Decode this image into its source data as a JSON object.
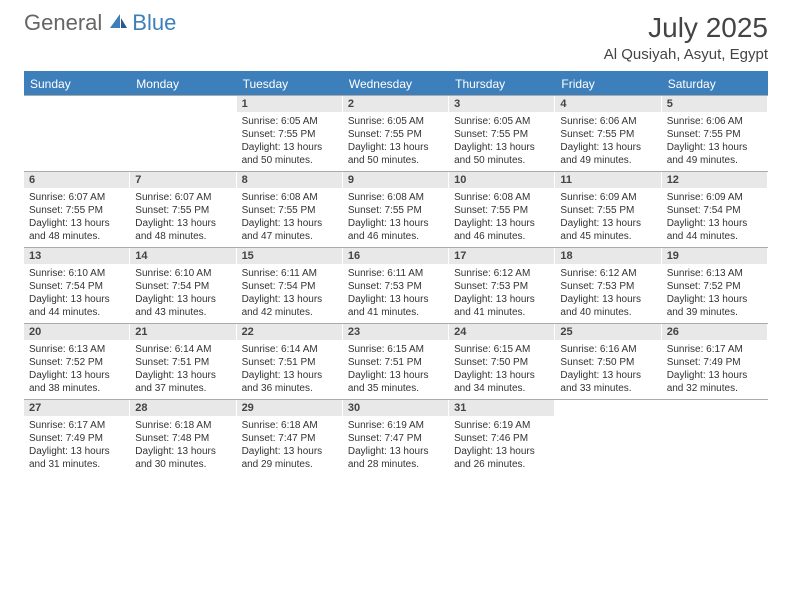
{
  "logo": {
    "text1": "General",
    "text2": "Blue"
  },
  "title": "July 2025",
  "location": "Al Qusiyah, Asyut, Egypt",
  "colors": {
    "header_bar": "#3d7fba",
    "day_num_bg": "#e8e8e8",
    "text": "#333333",
    "title_text": "#444444",
    "background": "#ffffff"
  },
  "day_headers": [
    "Sunday",
    "Monday",
    "Tuesday",
    "Wednesday",
    "Thursday",
    "Friday",
    "Saturday"
  ],
  "weeks": [
    [
      {
        "n": "",
        "sr": "",
        "ss": "",
        "d1": "",
        "d2": "",
        "empty": true
      },
      {
        "n": "",
        "sr": "",
        "ss": "",
        "d1": "",
        "d2": "",
        "empty": true
      },
      {
        "n": "1",
        "sr": "Sunrise: 6:05 AM",
        "ss": "Sunset: 7:55 PM",
        "d1": "Daylight: 13 hours",
        "d2": "and 50 minutes."
      },
      {
        "n": "2",
        "sr": "Sunrise: 6:05 AM",
        "ss": "Sunset: 7:55 PM",
        "d1": "Daylight: 13 hours",
        "d2": "and 50 minutes."
      },
      {
        "n": "3",
        "sr": "Sunrise: 6:05 AM",
        "ss": "Sunset: 7:55 PM",
        "d1": "Daylight: 13 hours",
        "d2": "and 50 minutes."
      },
      {
        "n": "4",
        "sr": "Sunrise: 6:06 AM",
        "ss": "Sunset: 7:55 PM",
        "d1": "Daylight: 13 hours",
        "d2": "and 49 minutes."
      },
      {
        "n": "5",
        "sr": "Sunrise: 6:06 AM",
        "ss": "Sunset: 7:55 PM",
        "d1": "Daylight: 13 hours",
        "d2": "and 49 minutes."
      }
    ],
    [
      {
        "n": "6",
        "sr": "Sunrise: 6:07 AM",
        "ss": "Sunset: 7:55 PM",
        "d1": "Daylight: 13 hours",
        "d2": "and 48 minutes."
      },
      {
        "n": "7",
        "sr": "Sunrise: 6:07 AM",
        "ss": "Sunset: 7:55 PM",
        "d1": "Daylight: 13 hours",
        "d2": "and 48 minutes."
      },
      {
        "n": "8",
        "sr": "Sunrise: 6:08 AM",
        "ss": "Sunset: 7:55 PM",
        "d1": "Daylight: 13 hours",
        "d2": "and 47 minutes."
      },
      {
        "n": "9",
        "sr": "Sunrise: 6:08 AM",
        "ss": "Sunset: 7:55 PM",
        "d1": "Daylight: 13 hours",
        "d2": "and 46 minutes."
      },
      {
        "n": "10",
        "sr": "Sunrise: 6:08 AM",
        "ss": "Sunset: 7:55 PM",
        "d1": "Daylight: 13 hours",
        "d2": "and 46 minutes."
      },
      {
        "n": "11",
        "sr": "Sunrise: 6:09 AM",
        "ss": "Sunset: 7:55 PM",
        "d1": "Daylight: 13 hours",
        "d2": "and 45 minutes."
      },
      {
        "n": "12",
        "sr": "Sunrise: 6:09 AM",
        "ss": "Sunset: 7:54 PM",
        "d1": "Daylight: 13 hours",
        "d2": "and 44 minutes."
      }
    ],
    [
      {
        "n": "13",
        "sr": "Sunrise: 6:10 AM",
        "ss": "Sunset: 7:54 PM",
        "d1": "Daylight: 13 hours",
        "d2": "and 44 minutes."
      },
      {
        "n": "14",
        "sr": "Sunrise: 6:10 AM",
        "ss": "Sunset: 7:54 PM",
        "d1": "Daylight: 13 hours",
        "d2": "and 43 minutes."
      },
      {
        "n": "15",
        "sr": "Sunrise: 6:11 AM",
        "ss": "Sunset: 7:54 PM",
        "d1": "Daylight: 13 hours",
        "d2": "and 42 minutes."
      },
      {
        "n": "16",
        "sr": "Sunrise: 6:11 AM",
        "ss": "Sunset: 7:53 PM",
        "d1": "Daylight: 13 hours",
        "d2": "and 41 minutes."
      },
      {
        "n": "17",
        "sr": "Sunrise: 6:12 AM",
        "ss": "Sunset: 7:53 PM",
        "d1": "Daylight: 13 hours",
        "d2": "and 41 minutes."
      },
      {
        "n": "18",
        "sr": "Sunrise: 6:12 AM",
        "ss": "Sunset: 7:53 PM",
        "d1": "Daylight: 13 hours",
        "d2": "and 40 minutes."
      },
      {
        "n": "19",
        "sr": "Sunrise: 6:13 AM",
        "ss": "Sunset: 7:52 PM",
        "d1": "Daylight: 13 hours",
        "d2": "and 39 minutes."
      }
    ],
    [
      {
        "n": "20",
        "sr": "Sunrise: 6:13 AM",
        "ss": "Sunset: 7:52 PM",
        "d1": "Daylight: 13 hours",
        "d2": "and 38 minutes."
      },
      {
        "n": "21",
        "sr": "Sunrise: 6:14 AM",
        "ss": "Sunset: 7:51 PM",
        "d1": "Daylight: 13 hours",
        "d2": "and 37 minutes."
      },
      {
        "n": "22",
        "sr": "Sunrise: 6:14 AM",
        "ss": "Sunset: 7:51 PM",
        "d1": "Daylight: 13 hours",
        "d2": "and 36 minutes."
      },
      {
        "n": "23",
        "sr": "Sunrise: 6:15 AM",
        "ss": "Sunset: 7:51 PM",
        "d1": "Daylight: 13 hours",
        "d2": "and 35 minutes."
      },
      {
        "n": "24",
        "sr": "Sunrise: 6:15 AM",
        "ss": "Sunset: 7:50 PM",
        "d1": "Daylight: 13 hours",
        "d2": "and 34 minutes."
      },
      {
        "n": "25",
        "sr": "Sunrise: 6:16 AM",
        "ss": "Sunset: 7:50 PM",
        "d1": "Daylight: 13 hours",
        "d2": "and 33 minutes."
      },
      {
        "n": "26",
        "sr": "Sunrise: 6:17 AM",
        "ss": "Sunset: 7:49 PM",
        "d1": "Daylight: 13 hours",
        "d2": "and 32 minutes."
      }
    ],
    [
      {
        "n": "27",
        "sr": "Sunrise: 6:17 AM",
        "ss": "Sunset: 7:49 PM",
        "d1": "Daylight: 13 hours",
        "d2": "and 31 minutes."
      },
      {
        "n": "28",
        "sr": "Sunrise: 6:18 AM",
        "ss": "Sunset: 7:48 PM",
        "d1": "Daylight: 13 hours",
        "d2": "and 30 minutes."
      },
      {
        "n": "29",
        "sr": "Sunrise: 6:18 AM",
        "ss": "Sunset: 7:47 PM",
        "d1": "Daylight: 13 hours",
        "d2": "and 29 minutes."
      },
      {
        "n": "30",
        "sr": "Sunrise: 6:19 AM",
        "ss": "Sunset: 7:47 PM",
        "d1": "Daylight: 13 hours",
        "d2": "and 28 minutes."
      },
      {
        "n": "31",
        "sr": "Sunrise: 6:19 AM",
        "ss": "Sunset: 7:46 PM",
        "d1": "Daylight: 13 hours",
        "d2": "and 26 minutes."
      },
      {
        "n": "",
        "sr": "",
        "ss": "",
        "d1": "",
        "d2": "",
        "empty": true
      },
      {
        "n": "",
        "sr": "",
        "ss": "",
        "d1": "",
        "d2": "",
        "empty": true
      }
    ]
  ]
}
